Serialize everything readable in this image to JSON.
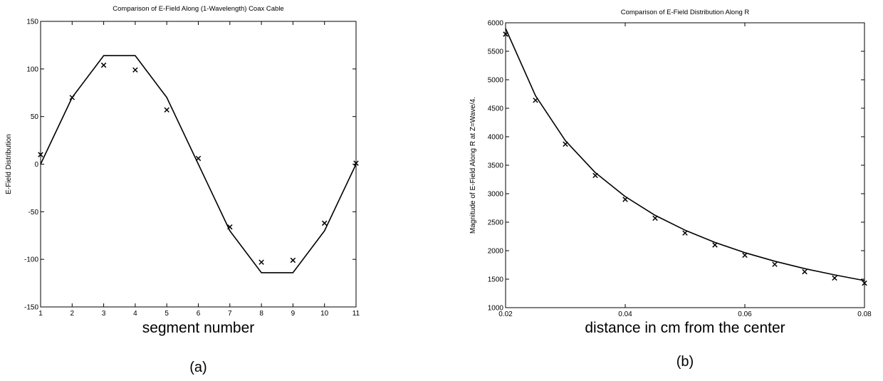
{
  "chart_data": [
    {
      "type": "line",
      "title": "Comparison of E-Field Along (1-Wavelength) Coax Cable",
      "xlabel": "segment number",
      "ylabel": "E-Field Distribution",
      "caption": "(a)",
      "xlim": [
        1,
        11
      ],
      "ylim": [
        -150,
        150
      ],
      "xticks": [
        1,
        2,
        3,
        4,
        5,
        6,
        7,
        8,
        9,
        10,
        11
      ],
      "yticks": [
        -150,
        -100,
        -50,
        0,
        50,
        100,
        150
      ],
      "grid": false,
      "series": [
        {
          "style": "line",
          "x": [
            1,
            2,
            3,
            4,
            5,
            6,
            7,
            8,
            9,
            10,
            11
          ],
          "y": [
            0,
            70,
            114,
            114,
            70,
            0,
            -70,
            -114,
            -114,
            -70,
            0
          ]
        },
        {
          "style": "markers-x",
          "x": [
            1,
            2,
            3,
            4,
            5,
            6,
            7,
            8,
            9,
            10,
            11
          ],
          "y": [
            10,
            70,
            104,
            99,
            57,
            6,
            -66,
            -103,
            -101,
            -62,
            1
          ]
        }
      ]
    },
    {
      "type": "line",
      "title": "Comparison of E-Field Distribution Along R",
      "xlabel": "distance in cm from the center",
      "ylabel": "Magnitude of E-Field Along R at Z=Wave/4.",
      "caption": "(b)",
      "xlim": [
        0.02,
        0.08
      ],
      "ylim": [
        1000,
        6000
      ],
      "xticks": [
        0.02,
        0.04,
        0.06,
        0.08
      ],
      "xtick_labels": [
        "0.02",
        "0.04",
        "0.06",
        "0.08"
      ],
      "yticks": [
        1000,
        1500,
        2000,
        2500,
        3000,
        3500,
        4000,
        4500,
        5000,
        5500,
        6000
      ],
      "grid": false,
      "series": [
        {
          "style": "line",
          "x": [
            0.02,
            0.025,
            0.03,
            0.035,
            0.04,
            0.045,
            0.05,
            0.055,
            0.06,
            0.065,
            0.07,
            0.075,
            0.08
          ],
          "y": [
            5900,
            4720,
            3930,
            3370,
            2950,
            2620,
            2360,
            2145,
            1965,
            1815,
            1685,
            1575,
            1475
          ]
        },
        {
          "style": "markers-x",
          "x": [
            0.02,
            0.025,
            0.03,
            0.035,
            0.04,
            0.045,
            0.05,
            0.055,
            0.06,
            0.065,
            0.07,
            0.075,
            0.08
          ],
          "y": [
            5800,
            4640,
            3870,
            3320,
            2900,
            2570,
            2310,
            2100,
            1920,
            1760,
            1630,
            1520,
            1430
          ]
        }
      ]
    }
  ]
}
